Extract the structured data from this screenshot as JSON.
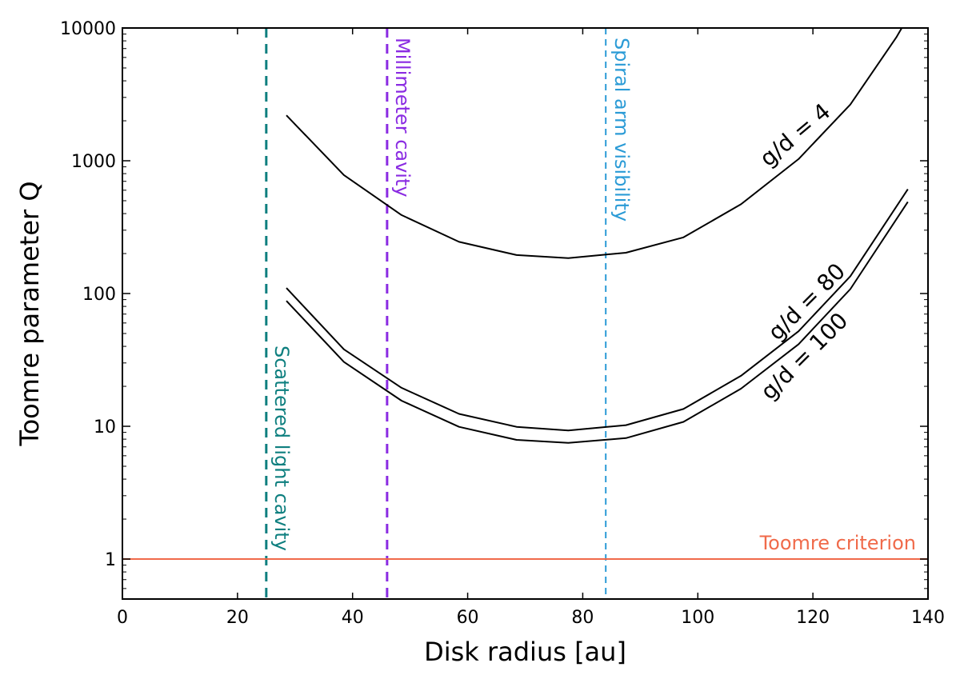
{
  "chart_data": {
    "type": "line",
    "title": "",
    "xlabel": "Disk radius [au]",
    "ylabel": "Toomre parameter Q",
    "xlim": [
      0,
      140
    ],
    "ylim": [
      0.5,
      10000
    ],
    "yscale": "log",
    "grid": false,
    "xticks": [
      0,
      20,
      40,
      60,
      80,
      100,
      120,
      140
    ],
    "xtick_labels": [
      "0",
      "20",
      "40",
      "60",
      "80",
      "100",
      "120",
      "140"
    ],
    "yticks": [
      1,
      10,
      100,
      1000,
      10000
    ],
    "ytick_labels": [
      "1",
      "10",
      "100",
      "1000",
      "10000"
    ],
    "series": [
      {
        "name": "g/d = 4",
        "color": "#000000",
        "x": [
          28.5,
          38.5,
          48.5,
          58.5,
          68.5,
          77.5,
          87.5,
          97.5,
          107.5,
          117.5,
          126.5,
          134.5,
          136.5
        ],
        "y": [
          2200,
          780,
          390,
          245,
          195,
          185,
          203,
          265,
          470,
          1030,
          2650,
          8500,
          12000
        ]
      },
      {
        "name": "g/d = 80",
        "color": "#000000",
        "x": [
          28.5,
          38.5,
          48.5,
          58.5,
          68.5,
          77.5,
          87.5,
          97.5,
          107.5,
          117.5,
          126.5,
          136.5
        ],
        "y": [
          110,
          38,
          19.5,
          12.4,
          9.9,
          9.3,
          10.2,
          13.5,
          24,
          52,
          135,
          610
        ]
      },
      {
        "name": "g/d = 100",
        "color": "#000000",
        "x": [
          28.5,
          38.5,
          48.5,
          58.5,
          68.5,
          77.5,
          87.5,
          97.5,
          107.5,
          117.5,
          126.5,
          136.5
        ],
        "y": [
          88,
          30.5,
          15.6,
          9.9,
          7.9,
          7.5,
          8.15,
          10.8,
          19.2,
          41.5,
          108,
          490
        ]
      }
    ],
    "reference_lines": [
      {
        "orientation": "vertical",
        "x": 25,
        "label": "Scattered light cavity",
        "color": "#0e7f7f",
        "style": "dashed"
      },
      {
        "orientation": "vertical",
        "x": 46,
        "label": "Millimeter cavity",
        "color": "#8a2be2",
        "style": "dashed"
      },
      {
        "orientation": "vertical",
        "x": 84,
        "label": "Spiral arm visibility",
        "color": "#2b9bd6",
        "style": "dashed"
      },
      {
        "orientation": "horizontal",
        "y": 1,
        "label": "Toomre criterion",
        "color": "#f06a4a",
        "style": "solid"
      }
    ]
  }
}
